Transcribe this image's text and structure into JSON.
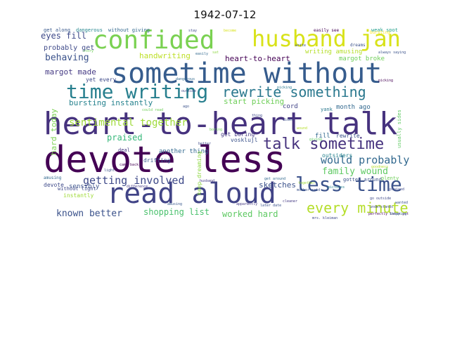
{
  "title": "1942-07-12",
  "palette": {
    "dark_purple": "#440154",
    "deep_blue": "#3b528b",
    "teal": "#21918c",
    "green_teal": "#2a9d8f",
    "green": "#5ec962",
    "yellow_green": "#a0da39",
    "yellow": "#d8e219",
    "light_yellow": "#fde725",
    "muted_blue": "#31688e",
    "mid_teal": "#1f9e89"
  },
  "words": [
    {
      "text": "devote less",
      "color": "#440154"
    },
    {
      "text": "heart-to-heart talk",
      "color": "#46327e"
    },
    {
      "text": "sometime without",
      "color": "#365c8d"
    },
    {
      "text": "read aloud",
      "color": "#414487"
    },
    {
      "text": "confided",
      "color": "#7ad151"
    },
    {
      "text": "husband jan",
      "color": "#d8e219"
    },
    {
      "text": "time writing",
      "color": "#277f8e"
    },
    {
      "text": "rewrite something",
      "color": "#2a788e"
    },
    {
      "text": "less time",
      "color": "#3b528b"
    },
    {
      "text": "every minute",
      "color": "#b5de2b"
    },
    {
      "text": "talk sometime",
      "color": "#46327e"
    },
    {
      "text": "sentimental together",
      "color": "#9fda3a"
    },
    {
      "text": "getting involved",
      "color": "#3e4989"
    },
    {
      "text": "would probably",
      "color": "#31688e"
    },
    {
      "text": "family wound",
      "color": "#5ec962"
    },
    {
      "text": "known better",
      "color": "#3b528b"
    },
    {
      "text": "shopping list",
      "color": "#4ac16d"
    },
    {
      "text": "worked hard",
      "color": "#5ec962"
    },
    {
      "text": "behaving",
      "color": "#3b528b"
    },
    {
      "text": "eyes fill",
      "color": "#3e4989"
    },
    {
      "text": "handwriting",
      "color": "#bddf26"
    },
    {
      "text": "heart-to-heart",
      "color": "#440154"
    },
    {
      "text": "margot made",
      "color": "#443983"
    },
    {
      "text": "praised",
      "color": "#35b779"
    },
    {
      "text": "start picking",
      "color": "#6ece58"
    },
    {
      "text": "bursting instantly",
      "color": "#26828e"
    },
    {
      "text": "probably get",
      "color": "#3e4989"
    },
    {
      "text": "sketches",
      "color": "#3b528b"
    },
    {
      "text": "another thing",
      "color": "#31688e"
    },
    {
      "text": "hard today",
      "color": "#7ad151"
    },
    {
      "text": "writing amusing",
      "color": "#b5de2b"
    },
    {
      "text": "margot broke",
      "color": "#6ece58"
    },
    {
      "text": "month ago",
      "color": "#31688e"
    },
    {
      "text": "sensibly",
      "color": "#3b528b"
    },
    {
      "text": "get along",
      "color": "#38588c"
    },
    {
      "text": "dangerous",
      "color": "#24868e"
    },
    {
      "text": "without giving",
      "color": "#31688e"
    },
    {
      "text": "weak spot",
      "color": "#1f9e89"
    },
    {
      "text": "cord",
      "color": "#414487"
    },
    {
      "text": "yank",
      "color": "#2a788e"
    },
    {
      "text": "fill",
      "color": "#31688e"
    },
    {
      "text": "rewrite",
      "color": "#3b528b"
    },
    {
      "text": "get boring",
      "color": "#443983"
    },
    {
      "text": "keep dreaming",
      "color": "#8fd744"
    },
    {
      "text": "without light",
      "color": "#3e4989"
    },
    {
      "text": "gotten around",
      "color": "#3b528b"
    },
    {
      "text": "outsiders",
      "color": "#26828e"
    },
    {
      "text": "usually sides",
      "color": "#5ec962"
    },
    {
      "text": "plenty",
      "color": "#6ece58"
    },
    {
      "text": "instantly",
      "color": "#a0da39"
    },
    {
      "text": "devote",
      "color": "#3e4989"
    },
    {
      "text": "amusing",
      "color": "#31688e"
    },
    {
      "text": "deal",
      "color": "#443983"
    },
    {
      "text": "story",
      "color": "#6ece58"
    },
    {
      "text": "stay",
      "color": "#3e4989"
    },
    {
      "text": "become",
      "color": "#d8e219"
    },
    {
      "text": "easily",
      "color": "#31688e"
    },
    {
      "text": "sat",
      "color": "#8fd744"
    },
    {
      "text": "dreams",
      "color": "#3b528b"
    },
    {
      "text": "always saying",
      "color": "#3b528b"
    },
    {
      "text": "picking",
      "color": "#2a788e"
    },
    {
      "text": "sides",
      "color": "#3b528b"
    },
    {
      "text": "ago",
      "color": "#3b528b"
    },
    {
      "text": "husband",
      "color": "#443983"
    },
    {
      "text": "boring",
      "color": "#6ece58"
    },
    {
      "text": "thing",
      "color": "#3e4989"
    },
    {
      "text": "wound",
      "color": "#b5de2b"
    },
    {
      "text": "mother said",
      "color": "#3b528b"
    },
    {
      "text": "could read",
      "color": "#6ece58"
    },
    {
      "text": "yet every",
      "color": "#3e4989"
    },
    {
      "text": "came back",
      "color": "#440154"
    },
    {
      "text": "light",
      "color": "#3b528b"
    },
    {
      "text": "drifting",
      "color": "#38588c"
    },
    {
      "text": "difference",
      "color": "#443983"
    },
    {
      "text": "get around",
      "color": "#31688e"
    },
    {
      "text": "together",
      "color": "#a0da39"
    },
    {
      "text": "later date",
      "color": "#3b528b"
    },
    {
      "text": "apparently",
      "color": "#443983"
    },
    {
      "text": "mrs. kleiman",
      "color": "#3e4989"
    },
    {
      "text": "perfectly later yet",
      "color": "#440154"
    },
    {
      "text": "shopping read",
      "color": "#31688e"
    },
    {
      "text": "wanted",
      "color": "#3b528b"
    },
    {
      "text": "understands",
      "color": "#3e4989"
    },
    {
      "text": "go outside",
      "color": "#3e4989"
    },
    {
      "text": "picking",
      "color": "#440154"
    },
    {
      "text": "bursting",
      "color": "#fde725"
    },
    {
      "text": "easily see",
      "color": "#440154"
    },
    {
      "text": "write",
      "color": "#3b528b"
    },
    {
      "text": "dangerous",
      "color": "#31688e"
    },
    {
      "text": "giving",
      "color": "#5ec962"
    },
    {
      "text": "vosklujl",
      "color": "#3b528b"
    },
    {
      "text": "pictures",
      "color": "#26828e"
    },
    {
      "text": "better",
      "color": "#3e4989"
    },
    {
      "text": "cleaner",
      "color": "#443983"
    },
    {
      "text": "outside",
      "color": "#3e4989"
    },
    {
      "text": "praised",
      "color": "#3e4989"
    },
    {
      "text": "goodness",
      "color": "#b5de2b"
    },
    {
      "text": "amusing",
      "color": "#38588c"
    }
  ]
}
